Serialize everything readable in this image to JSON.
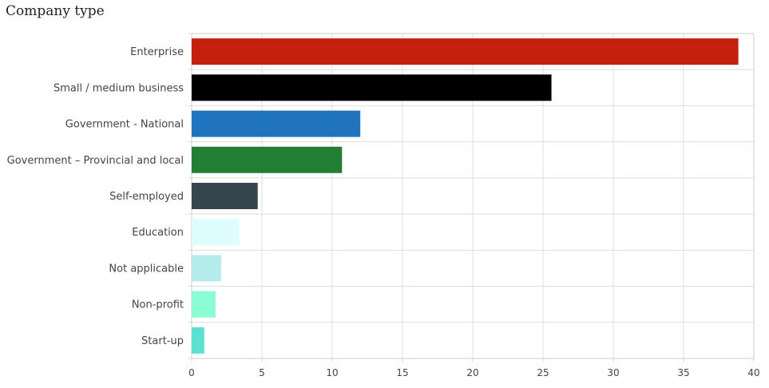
{
  "chart_data": {
    "type": "bar",
    "orientation": "horizontal",
    "title": "Company type",
    "xlabel": "",
    "ylabel": "",
    "categories": [
      "Enterprise",
      "Small / medium business",
      "Government - National",
      "Government – Provincial and local",
      "Self-employed",
      "Education",
      "Not applicable",
      "Non-profit",
      "Start-up"
    ],
    "values": [
      38.9,
      25.6,
      12.0,
      10.7,
      4.7,
      3.4,
      2.1,
      1.7,
      0.9
    ],
    "colors": [
      "#c5200f",
      "#000000",
      "#1f74bd",
      "#227d35",
      "#36444e",
      "#e0fdfd",
      "#b4ebeb",
      "#8cfcd4",
      "#5ee0d0"
    ],
    "xlim": [
      0,
      40
    ],
    "xticks": [
      0,
      5,
      10,
      15,
      20,
      25,
      30,
      35,
      40
    ],
    "grid": true,
    "legend": "none"
  }
}
